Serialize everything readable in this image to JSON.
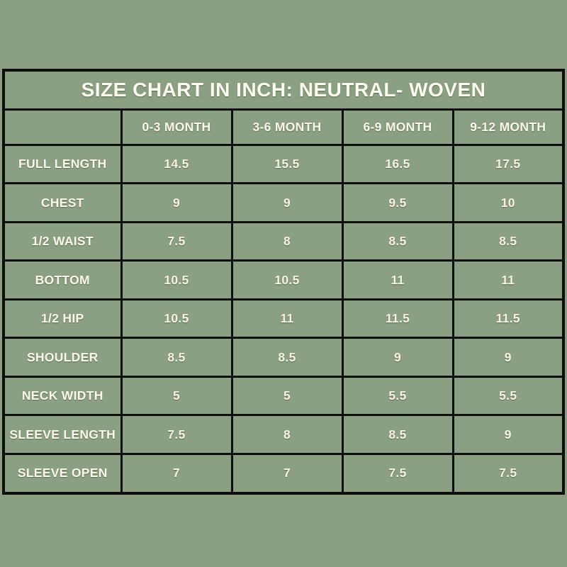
{
  "page": {
    "background_color": "#8BA083",
    "grid_border_color": "#0e0e0e",
    "text_color": "#f6f3e0"
  },
  "chart_data": {
    "type": "table",
    "title": "SIZE CHART IN INCH: NEUTRAL- WOVEN",
    "unit": "inch",
    "columns": [
      "0-3 MONTH",
      "3-6 MONTH",
      "6-9 MONTH",
      "9-12 MONTH"
    ],
    "rows": [
      {
        "label": "FULL LENGTH",
        "values": [
          "14.5",
          "15.5",
          "16.5",
          "17.5"
        ]
      },
      {
        "label": "CHEST",
        "values": [
          "9",
          "9",
          "9.5",
          "10"
        ]
      },
      {
        "label": "1/2 WAIST",
        "values": [
          "7.5",
          "8",
          "8.5",
          "8.5"
        ]
      },
      {
        "label": "BOTTOM",
        "values": [
          "10.5",
          "10.5",
          "11",
          "11"
        ]
      },
      {
        "label": "1/2 HIP",
        "values": [
          "10.5",
          "11",
          "11.5",
          "11.5"
        ]
      },
      {
        "label": "SHOULDER",
        "values": [
          "8.5",
          "8.5",
          "9",
          "9"
        ]
      },
      {
        "label": "NECK WIDTH",
        "values": [
          "5",
          "5",
          "5.5",
          "5.5"
        ]
      },
      {
        "label": "SLEEVE LENGTH",
        "values": [
          "7.5",
          "8",
          "8.5",
          "9"
        ]
      },
      {
        "label": "SLEEVE OPEN",
        "values": [
          "7",
          "7",
          "7.5",
          "7.5"
        ]
      }
    ]
  }
}
